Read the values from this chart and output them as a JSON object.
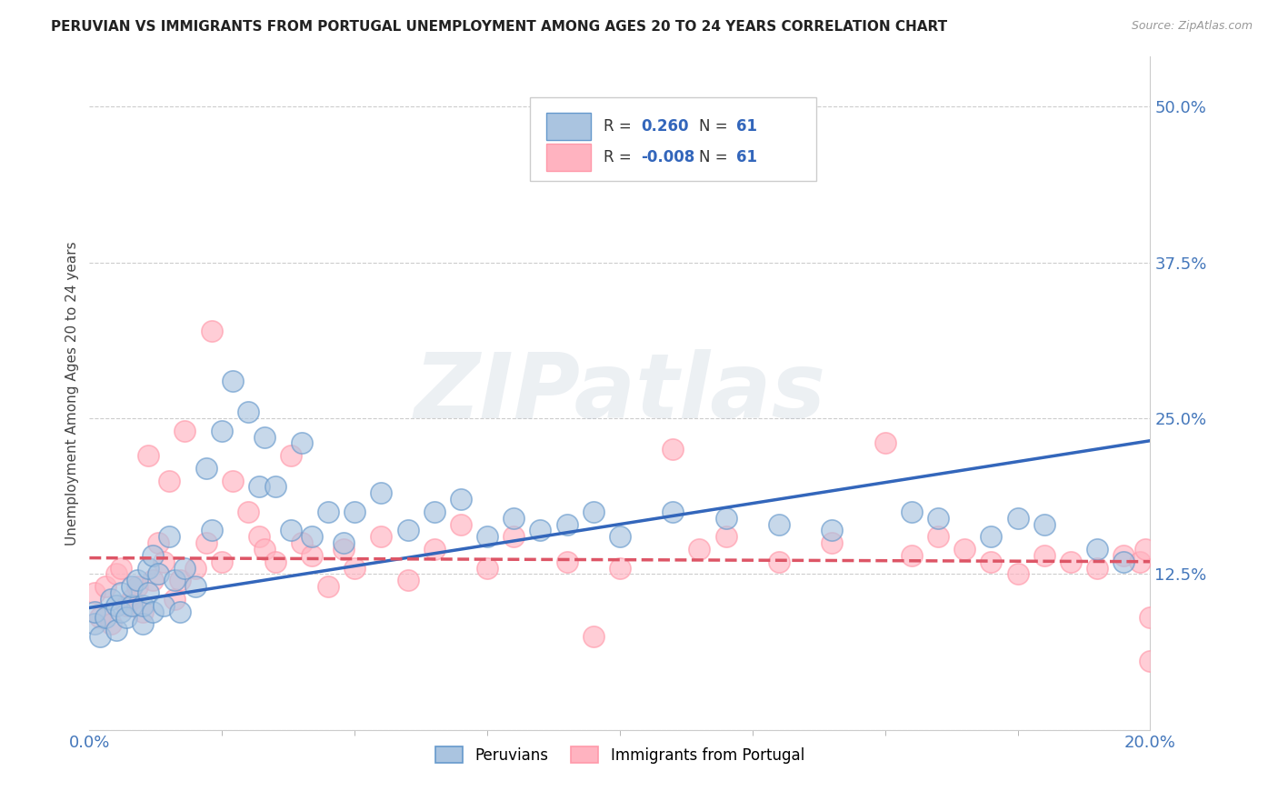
{
  "title": "PERUVIAN VS IMMIGRANTS FROM PORTUGAL UNEMPLOYMENT AMONG AGES 20 TO 24 YEARS CORRELATION CHART",
  "source_text": "Source: ZipAtlas.com",
  "ylabel": "Unemployment Among Ages 20 to 24 years",
  "xlim": [
    0.0,
    0.2
  ],
  "ylim": [
    0.0,
    0.54
  ],
  "yticks": [
    0.0,
    0.125,
    0.25,
    0.375,
    0.5
  ],
  "ytick_labels": [
    "",
    "12.5%",
    "25.0%",
    "37.5%",
    "50.0%"
  ],
  "xticks": [
    0.0,
    0.2
  ],
  "xtick_labels": [
    "0.0%",
    "20.0%"
  ],
  "R_blue": 0.26,
  "N_blue": 61,
  "R_pink": -0.008,
  "N_pink": 61,
  "blue_color": "#6699CC",
  "pink_color": "#FF99AA",
  "blue_fill": "#AAC4E0",
  "pink_fill": "#FFB3C0",
  "trend_blue": "#3366BB",
  "trend_pink": "#DD5566",
  "grid_color": "#CCCCCC",
  "background_color": "#FFFFFF",
  "watermark": "ZIPatlas",
  "legend_labels": [
    "Peruvians",
    "Immigrants from Portugal"
  ],
  "blue_scatter_x": [
    0.001,
    0.001,
    0.002,
    0.003,
    0.004,
    0.005,
    0.005,
    0.006,
    0.006,
    0.007,
    0.008,
    0.008,
    0.009,
    0.01,
    0.01,
    0.011,
    0.011,
    0.012,
    0.012,
    0.013,
    0.014,
    0.015,
    0.016,
    0.017,
    0.018,
    0.02,
    0.022,
    0.023,
    0.025,
    0.027,
    0.03,
    0.032,
    0.033,
    0.035,
    0.038,
    0.04,
    0.042,
    0.045,
    0.048,
    0.05,
    0.055,
    0.06,
    0.065,
    0.07,
    0.075,
    0.08,
    0.085,
    0.09,
    0.095,
    0.1,
    0.11,
    0.12,
    0.13,
    0.14,
    0.155,
    0.16,
    0.17,
    0.175,
    0.18,
    0.19,
    0.195
  ],
  "blue_scatter_y": [
    0.085,
    0.095,
    0.075,
    0.09,
    0.105,
    0.08,
    0.1,
    0.095,
    0.11,
    0.09,
    0.1,
    0.115,
    0.12,
    0.085,
    0.1,
    0.11,
    0.13,
    0.095,
    0.14,
    0.125,
    0.1,
    0.155,
    0.12,
    0.095,
    0.13,
    0.115,
    0.21,
    0.16,
    0.24,
    0.28,
    0.255,
    0.195,
    0.235,
    0.195,
    0.16,
    0.23,
    0.155,
    0.175,
    0.15,
    0.175,
    0.19,
    0.16,
    0.175,
    0.185,
    0.155,
    0.17,
    0.16,
    0.165,
    0.175,
    0.155,
    0.175,
    0.17,
    0.165,
    0.16,
    0.175,
    0.17,
    0.155,
    0.17,
    0.165,
    0.145,
    0.135
  ],
  "pink_scatter_x": [
    0.001,
    0.002,
    0.003,
    0.004,
    0.005,
    0.006,
    0.007,
    0.008,
    0.009,
    0.01,
    0.011,
    0.012,
    0.013,
    0.014,
    0.015,
    0.016,
    0.017,
    0.018,
    0.02,
    0.022,
    0.023,
    0.025,
    0.027,
    0.03,
    0.032,
    0.033,
    0.035,
    0.038,
    0.04,
    0.042,
    0.045,
    0.048,
    0.05,
    0.055,
    0.06,
    0.065,
    0.07,
    0.075,
    0.08,
    0.09,
    0.095,
    0.1,
    0.11,
    0.115,
    0.12,
    0.13,
    0.14,
    0.15,
    0.155,
    0.16,
    0.165,
    0.17,
    0.175,
    0.18,
    0.185,
    0.19,
    0.195,
    0.198,
    0.199,
    0.2,
    0.2
  ],
  "pink_scatter_y": [
    0.11,
    0.09,
    0.115,
    0.085,
    0.125,
    0.13,
    0.1,
    0.105,
    0.115,
    0.095,
    0.22,
    0.12,
    0.15,
    0.135,
    0.2,
    0.105,
    0.12,
    0.24,
    0.13,
    0.15,
    0.32,
    0.135,
    0.2,
    0.175,
    0.155,
    0.145,
    0.135,
    0.22,
    0.15,
    0.14,
    0.115,
    0.145,
    0.13,
    0.155,
    0.12,
    0.145,
    0.165,
    0.13,
    0.155,
    0.135,
    0.075,
    0.13,
    0.225,
    0.145,
    0.155,
    0.135,
    0.15,
    0.23,
    0.14,
    0.155,
    0.145,
    0.135,
    0.125,
    0.14,
    0.135,
    0.13,
    0.14,
    0.135,
    0.145,
    0.055,
    0.09
  ],
  "blue_trend_x": [
    0.0,
    0.2
  ],
  "blue_trend_y": [
    0.098,
    0.232
  ],
  "pink_trend_x": [
    0.0,
    0.2
  ],
  "pink_trend_y": [
    0.138,
    0.135
  ]
}
